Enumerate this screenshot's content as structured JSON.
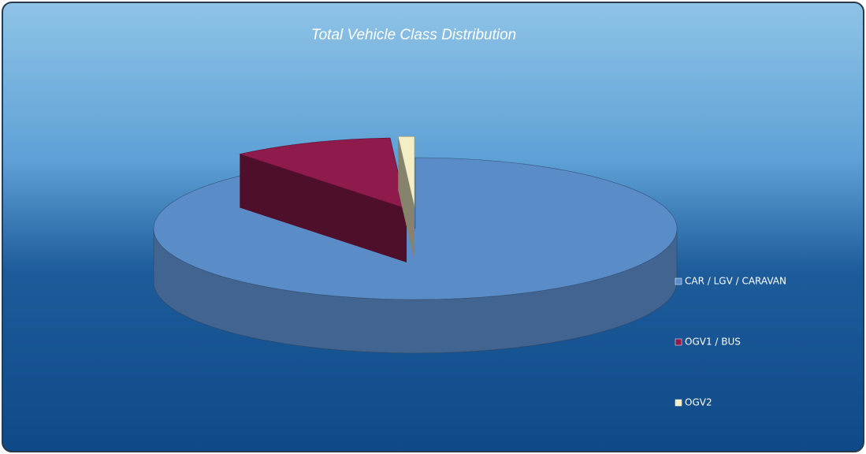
{
  "chart_data": {
    "type": "pie3d",
    "title": "Total Vehicle Class Distribution",
    "categories": [
      "CAR / LGV / CARAVAN",
      "OGV1 / BUS",
      "OGV2"
    ],
    "values": [
      89,
      10,
      1
    ],
    "colors": [
      "#5a8cc8",
      "#8e1b4c",
      "#f3eec4"
    ],
    "legend": "right"
  }
}
